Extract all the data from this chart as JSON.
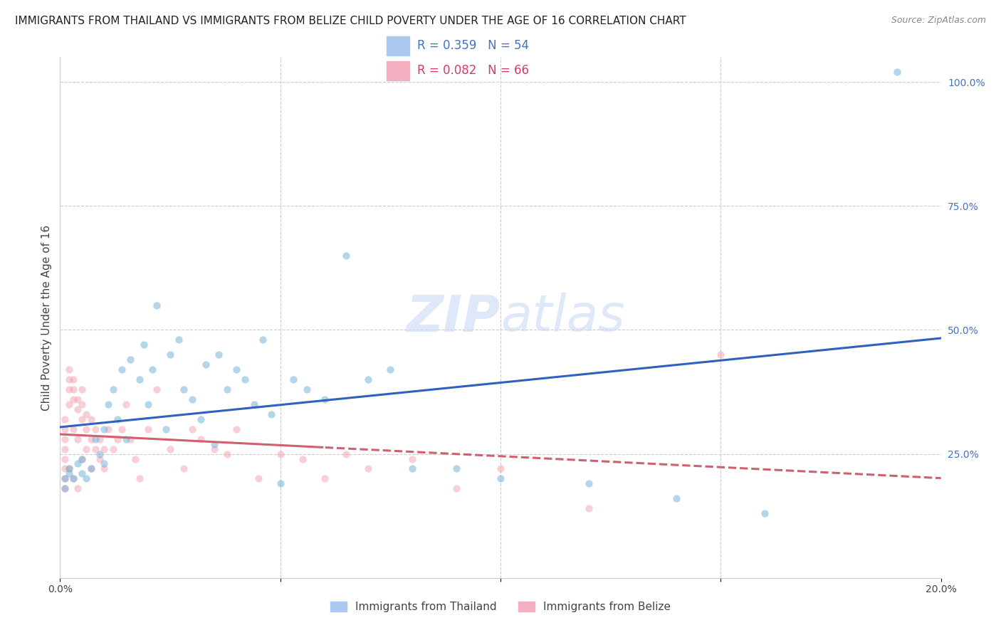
{
  "title": "IMMIGRANTS FROM THAILAND VS IMMIGRANTS FROM BELIZE CHILD POVERTY UNDER THE AGE OF 16 CORRELATION CHART",
  "source": "Source: ZipAtlas.com",
  "ylabel": "Child Poverty Under the Age of 16",
  "xlim": [
    0.0,
    0.2
  ],
  "ylim": [
    0.0,
    1.05
  ],
  "x_ticks": [
    0.0,
    0.05,
    0.1,
    0.15,
    0.2
  ],
  "x_tick_labels": [
    "0.0%",
    "",
    "",
    "",
    "20.0%"
  ],
  "y_ticks_right": [
    0.0,
    0.25,
    0.5,
    0.75,
    1.0
  ],
  "y_tick_labels_right": [
    "",
    "25.0%",
    "50.0%",
    "75.0%",
    "100.0%"
  ],
  "watermark": "ZIPatlas",
  "thailand_color": "#6baed6",
  "belize_color": "#f4a0b0",
  "thailand_line_color": "#3060c0",
  "belize_line_color": "#d06070",
  "thailand_scatter_x": [
    0.001,
    0.001,
    0.002,
    0.002,
    0.003,
    0.004,
    0.005,
    0.005,
    0.006,
    0.007,
    0.008,
    0.009,
    0.01,
    0.01,
    0.011,
    0.012,
    0.013,
    0.014,
    0.015,
    0.016,
    0.018,
    0.019,
    0.02,
    0.021,
    0.022,
    0.024,
    0.025,
    0.027,
    0.028,
    0.03,
    0.032,
    0.033,
    0.035,
    0.036,
    0.038,
    0.04,
    0.042,
    0.044,
    0.046,
    0.048,
    0.05,
    0.053,
    0.056,
    0.06,
    0.065,
    0.07,
    0.075,
    0.08,
    0.09,
    0.1,
    0.12,
    0.14,
    0.16,
    0.19
  ],
  "thailand_scatter_y": [
    0.2,
    0.18,
    0.22,
    0.21,
    0.2,
    0.23,
    0.21,
    0.24,
    0.2,
    0.22,
    0.28,
    0.25,
    0.23,
    0.3,
    0.35,
    0.38,
    0.32,
    0.42,
    0.28,
    0.44,
    0.4,
    0.47,
    0.35,
    0.42,
    0.55,
    0.3,
    0.45,
    0.48,
    0.38,
    0.36,
    0.32,
    0.43,
    0.27,
    0.45,
    0.38,
    0.42,
    0.4,
    0.35,
    0.48,
    0.33,
    0.19,
    0.4,
    0.38,
    0.36,
    0.65,
    0.4,
    0.42,
    0.22,
    0.22,
    0.2,
    0.19,
    0.16,
    0.13,
    1.02
  ],
  "belize_scatter_x": [
    0.001,
    0.001,
    0.001,
    0.001,
    0.001,
    0.001,
    0.001,
    0.001,
    0.002,
    0.002,
    0.002,
    0.002,
    0.002,
    0.003,
    0.003,
    0.003,
    0.003,
    0.003,
    0.004,
    0.004,
    0.004,
    0.004,
    0.005,
    0.005,
    0.005,
    0.005,
    0.006,
    0.006,
    0.006,
    0.007,
    0.007,
    0.007,
    0.008,
    0.008,
    0.009,
    0.009,
    0.01,
    0.01,
    0.011,
    0.012,
    0.013,
    0.014,
    0.015,
    0.016,
    0.017,
    0.018,
    0.02,
    0.022,
    0.025,
    0.028,
    0.03,
    0.032,
    0.035,
    0.038,
    0.04,
    0.045,
    0.05,
    0.055,
    0.06,
    0.065,
    0.07,
    0.08,
    0.09,
    0.1,
    0.12,
    0.15
  ],
  "belize_scatter_y": [
    0.2,
    0.22,
    0.24,
    0.26,
    0.28,
    0.3,
    0.32,
    0.18,
    0.35,
    0.38,
    0.4,
    0.42,
    0.22,
    0.36,
    0.38,
    0.4,
    0.3,
    0.2,
    0.34,
    0.36,
    0.28,
    0.18,
    0.32,
    0.35,
    0.38,
    0.24,
    0.3,
    0.33,
    0.26,
    0.28,
    0.32,
    0.22,
    0.26,
    0.3,
    0.24,
    0.28,
    0.26,
    0.22,
    0.3,
    0.26,
    0.28,
    0.3,
    0.35,
    0.28,
    0.24,
    0.2,
    0.3,
    0.38,
    0.26,
    0.22,
    0.3,
    0.28,
    0.26,
    0.25,
    0.3,
    0.2,
    0.25,
    0.24,
    0.2,
    0.25,
    0.22,
    0.24,
    0.18,
    0.22,
    0.14,
    0.45
  ],
  "background_color": "#ffffff",
  "grid_color": "#cccccc",
  "title_fontsize": 11,
  "axis_label_fontsize": 11,
  "tick_fontsize": 10,
  "scatter_size": 55,
  "scatter_alpha": 0.5,
  "line_width": 2.2,
  "legend_R1": "R = 0.359",
  "legend_N1": "N = 54",
  "legend_R2": "R = 0.082",
  "legend_N2": "N = 66",
  "legend_color1": "#4472c4",
  "legend_color2": "#d04060",
  "legend_box_color1": "#adc8f0",
  "legend_box_color2": "#f4b0c0",
  "label_thailand": "Immigrants from Thailand",
  "label_belize": "Immigrants from Belize"
}
